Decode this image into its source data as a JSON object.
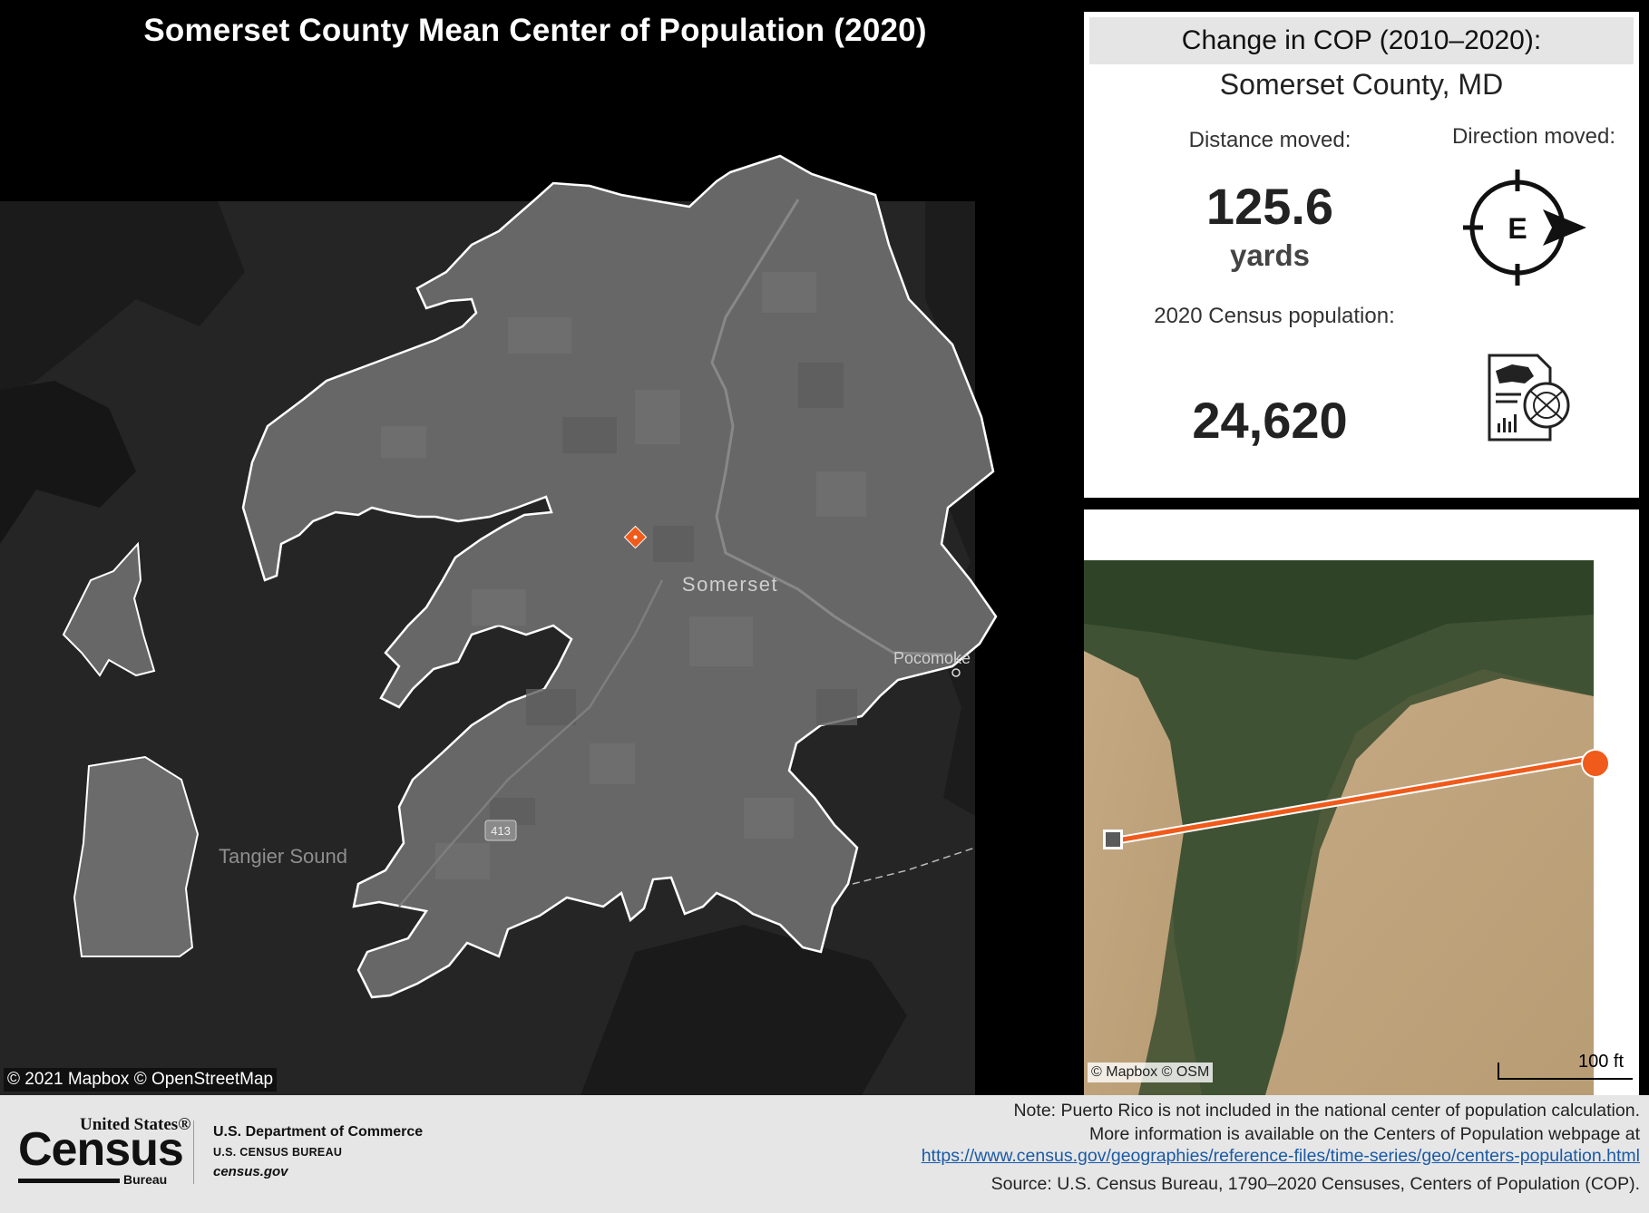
{
  "title": "Somerset County Mean Center of Population (2020)",
  "main_map": {
    "county_label": "Somerset",
    "water_label": "Tangier Sound",
    "town_label": "Pocomoke",
    "route_shield": "413",
    "attribution": "© 2021 Mapbox © OpenStreetMap",
    "center_marker_color": "#f05a1a",
    "county_fill": "#676767",
    "background_color": "#252525"
  },
  "stats": {
    "header": "Change in COP (2010–2020):",
    "county_name": "Somerset County, MD",
    "distance_label": "Distance moved:",
    "distance_value": "125.6",
    "distance_unit": "yards",
    "direction_label": "Direction moved:",
    "direction_letter": "E",
    "population_label": "2020 Census population:",
    "population_value": "24,620"
  },
  "detail_map": {
    "attribution": "© Mapbox © OSM",
    "scale_label": "100 ft",
    "path_color": "#f05a1a",
    "start_marker": "square-2010",
    "end_marker": "circle-2020"
  },
  "footer": {
    "logo_top": "United States®",
    "logo_main": "Census",
    "logo_bottom": "Bureau",
    "dept_name": "U.S. Department of Commerce",
    "bureau_name": "U.S. CENSUS BUREAU",
    "website": "census.gov",
    "note_line1": "Note: Puerto Rico is not included in the national center of population calculation.",
    "note_line2": "More information is available on the Centers of Population webpage at",
    "note_link": "https://www.census.gov/geographies/reference-files/time-series/geo/centers-population.html",
    "source": "Source: U.S. Census Bureau, 1790–2020 Censuses, Centers of Population (COP)."
  }
}
